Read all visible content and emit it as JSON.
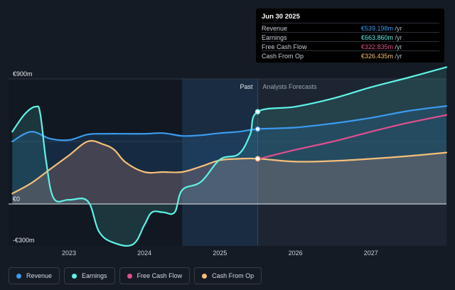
{
  "tooltip": {
    "date": "Jun 30 2025",
    "rows": [
      {
        "name": "Revenue",
        "value": "€539.198m",
        "unit": " /yr",
        "color": "#3b9bf0"
      },
      {
        "name": "Earnings",
        "value": "€663.860m",
        "unit": " /yr",
        "color": "#5ff2e6"
      },
      {
        "name": "Free Cash Flow",
        "value": "€322.835m",
        "unit": " /yr",
        "color": "#e04f8d"
      },
      {
        "name": "Cash From Op",
        "value": "€326.435m",
        "unit": " /yr",
        "color": "#f5bf78"
      }
    ]
  },
  "legend": [
    {
      "label": "Revenue",
      "color": "#3b9bf0"
    },
    {
      "label": "Earnings",
      "color": "#5ff2e6"
    },
    {
      "label": "Free Cash Flow",
      "color": "#e04f8d"
    },
    {
      "label": "Cash From Op",
      "color": "#f5bf78"
    }
  ],
  "chart_data": {
    "type": "line",
    "y_tick_labels": [
      "€900m",
      "€0",
      "-€300m"
    ],
    "ylim": [
      -330,
      900
    ],
    "x_tick_labels": [
      "2023",
      "2024",
      "2025",
      "2026",
      "2027"
    ],
    "xlim": [
      2022.2,
      2028.0
    ],
    "past_label": "Past",
    "forecast_label": "Analysts Forecasts",
    "divider_x": 2025.5,
    "highlight_range": [
      2024.5,
      2025.5
    ],
    "series": [
      {
        "name": "Revenue",
        "color": "#3b9bf0",
        "points": [
          [
            2022.25,
            450
          ],
          [
            2022.5,
            520
          ],
          [
            2022.75,
            470
          ],
          [
            2023.0,
            460
          ],
          [
            2023.25,
            500
          ],
          [
            2023.5,
            505
          ],
          [
            2023.75,
            505
          ],
          [
            2024.0,
            505
          ],
          [
            2024.25,
            510
          ],
          [
            2024.5,
            490
          ],
          [
            2024.75,
            495
          ],
          [
            2025.0,
            510
          ],
          [
            2025.25,
            520
          ],
          [
            2025.5,
            539
          ],
          [
            2026.0,
            550
          ],
          [
            2026.5,
            580
          ],
          [
            2027.0,
            620
          ],
          [
            2027.5,
            670
          ],
          [
            2028.0,
            705
          ]
        ]
      },
      {
        "name": "Earnings",
        "color": "#5ff2e6",
        "points": [
          [
            2022.25,
            520
          ],
          [
            2022.42,
            650
          ],
          [
            2022.56,
            700
          ],
          [
            2022.62,
            650
          ],
          [
            2022.7,
            300
          ],
          [
            2022.8,
            40
          ],
          [
            2023.0,
            30
          ],
          [
            2023.25,
            20
          ],
          [
            2023.4,
            -200
          ],
          [
            2023.6,
            -280
          ],
          [
            2023.85,
            -290
          ],
          [
            2024.0,
            -150
          ],
          [
            2024.1,
            -60
          ],
          [
            2024.25,
            -60
          ],
          [
            2024.4,
            -60
          ],
          [
            2024.5,
            100
          ],
          [
            2024.75,
            160
          ],
          [
            2025.0,
            320
          ],
          [
            2025.25,
            360
          ],
          [
            2025.4,
            500
          ],
          [
            2025.5,
            664
          ],
          [
            2026.0,
            700
          ],
          [
            2026.5,
            760
          ],
          [
            2027.0,
            840
          ],
          [
            2027.5,
            910
          ],
          [
            2028.0,
            985
          ]
        ]
      },
      {
        "name": "Free Cash Flow",
        "color": "#e04f8d",
        "forecast_only": true,
        "points": [
          [
            2025.5,
            323
          ],
          [
            2026.0,
            390
          ],
          [
            2026.5,
            450
          ],
          [
            2027.0,
            520
          ],
          [
            2027.5,
            585
          ],
          [
            2028.0,
            640
          ]
        ]
      },
      {
        "name": "Cash From Op",
        "color": "#f5bf78",
        "points": [
          [
            2022.25,
            75
          ],
          [
            2022.5,
            150
          ],
          [
            2022.75,
            250
          ],
          [
            2023.0,
            350
          ],
          [
            2023.25,
            450
          ],
          [
            2023.45,
            430
          ],
          [
            2023.6,
            390
          ],
          [
            2023.75,
            300
          ],
          [
            2024.0,
            230
          ],
          [
            2024.25,
            230
          ],
          [
            2024.5,
            230
          ],
          [
            2024.75,
            270
          ],
          [
            2025.0,
            315
          ],
          [
            2025.25,
            325
          ],
          [
            2025.5,
            326
          ],
          [
            2026.0,
            305
          ],
          [
            2026.5,
            310
          ],
          [
            2027.0,
            325
          ],
          [
            2027.5,
            345
          ],
          [
            2028.0,
            370
          ]
        ]
      }
    ]
  }
}
